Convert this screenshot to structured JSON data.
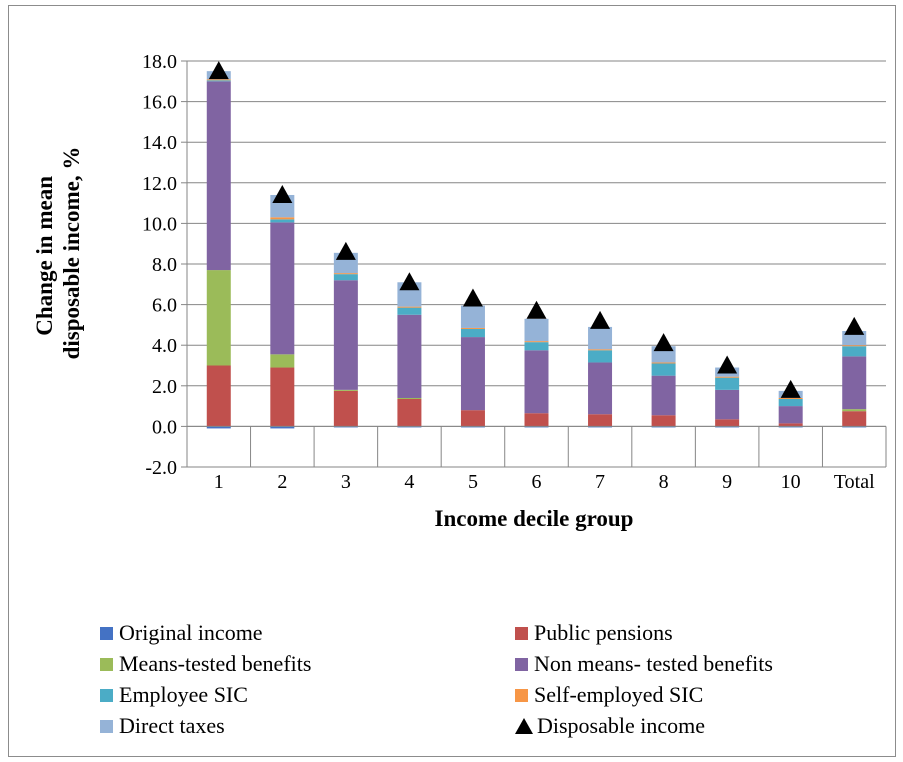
{
  "chart_data": {
    "type": "bar",
    "stacked": true,
    "xlabel": "Income decile group",
    "ylabel": [
      "Change in mean",
      "disposable income, %"
    ],
    "ylim": [
      -2.0,
      18.0
    ],
    "yticks": [
      "-2.0",
      "0.0",
      "2.0",
      "4.0",
      "6.0",
      "8.0",
      "10.0",
      "12.0",
      "14.0",
      "16.0",
      "18.0"
    ],
    "categories": [
      "1",
      "2",
      "3",
      "4",
      "5",
      "6",
      "7",
      "8",
      "9",
      "10",
      "Total"
    ],
    "grid": true,
    "series": [
      {
        "name": "Original income",
        "color": "#4472c4",
        "values": [
          -0.1,
          -0.1,
          -0.05,
          -0.05,
          -0.05,
          -0.05,
          -0.05,
          -0.05,
          -0.05,
          -0.05,
          -0.05
        ]
      },
      {
        "name": "Public pensions",
        "color": "#c0504d",
        "values": [
          3.0,
          2.9,
          1.75,
          1.35,
          0.8,
          0.65,
          0.6,
          0.55,
          0.35,
          0.15,
          0.75
        ]
      },
      {
        "name": "Means-tested benefits",
        "color": "#9bbb59",
        "values": [
          4.7,
          0.65,
          0.05,
          0.05,
          0.0,
          0.0,
          0.0,
          0.0,
          0.0,
          0.0,
          0.1
        ]
      },
      {
        "name": "Non means- tested benefits",
        "color": "#8064a2",
        "values": [
          9.3,
          6.5,
          5.4,
          4.1,
          3.6,
          3.1,
          2.55,
          1.95,
          1.45,
          0.85,
          2.6
        ]
      },
      {
        "name": "Employee SIC",
        "color": "#4bacc6",
        "values": [
          0.05,
          0.15,
          0.3,
          0.35,
          0.4,
          0.4,
          0.6,
          0.6,
          0.6,
          0.35,
          0.5
        ]
      },
      {
        "name": "Self-employed SIC",
        "color": "#f79646",
        "values": [
          0.05,
          0.1,
          0.05,
          0.05,
          0.05,
          0.05,
          0.05,
          0.05,
          0.05,
          0.05,
          0.05
        ]
      },
      {
        "name": "Direct taxes",
        "color": "#95b3d7",
        "values": [
          0.4,
          1.1,
          1.0,
          1.2,
          1.1,
          1.1,
          1.1,
          0.8,
          0.45,
          0.35,
          0.7
        ]
      }
    ],
    "disposable_income": {
      "name": "Disposable income",
      "color": "#000000",
      "values": [
        17.5,
        11.4,
        8.6,
        7.1,
        6.3,
        5.7,
        5.2,
        4.1,
        3.0,
        1.8,
        4.9
      ]
    },
    "legend": {
      "placement": "bottom",
      "items": [
        {
          "label": "Original income",
          "color": "#4472c4",
          "marker": "square"
        },
        {
          "label": "Public pensions",
          "color": "#c0504d",
          "marker": "square"
        },
        {
          "label": "Means-tested benefits",
          "color": "#9bbb59",
          "marker": "square"
        },
        {
          "label": "Non means- tested benefits",
          "color": "#8064a2",
          "marker": "square"
        },
        {
          "label": "Employee SIC",
          "color": "#4bacc6",
          "marker": "square"
        },
        {
          "label": "Self-employed SIC",
          "color": "#f79646",
          "marker": "square"
        },
        {
          "label": "Direct taxes",
          "color": "#95b3d7",
          "marker": "square"
        },
        {
          "label": "Disposable income",
          "color": "#000000",
          "marker": "triangle"
        }
      ]
    }
  }
}
